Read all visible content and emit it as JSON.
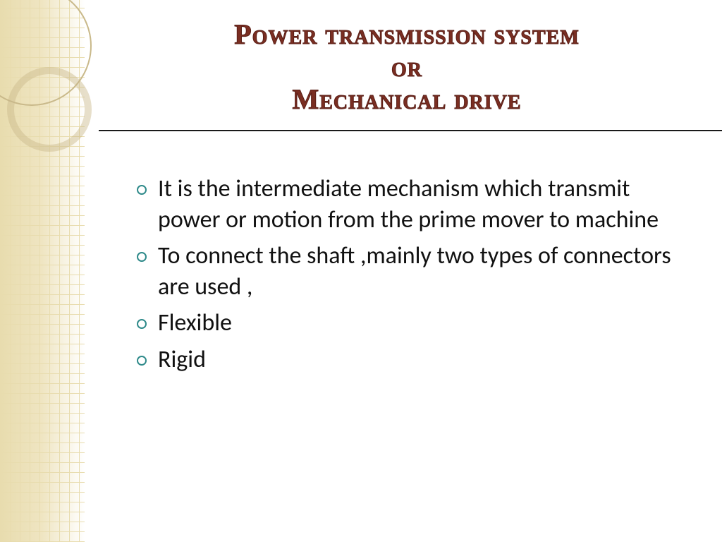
{
  "slide": {
    "title_lines": [
      "Power transmission system",
      "or",
      "Mechanical drive"
    ],
    "bullets": [
      "It is the intermediate mechanism which transmit power or motion from the prime mover to machine",
      "To connect the shaft ,mainly two types of connectors are used ,",
      "Flexible",
      "Rigid"
    ],
    "style": {
      "title_color": "#7a2e22",
      "title_fontsize_pt": 30,
      "title_font": "Copperplate / small-caps serif",
      "body_color": "#111111",
      "body_fontsize_pt": 26,
      "body_font": "Gill Sans / humanist sans",
      "bullet_marker_color": "#2f8a8a",
      "rule_color": "#1a1a1a",
      "left_band_base_color": "#e8dcae",
      "left_band_grid_color": "#d8c88f",
      "background_color": "#ffffff",
      "decor_circle_border_color": "#c9b98a"
    }
  }
}
